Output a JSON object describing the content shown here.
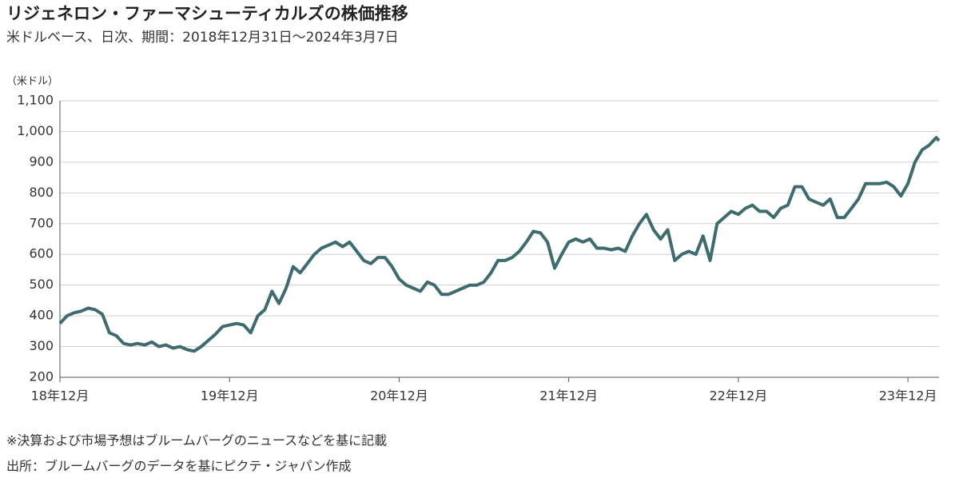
{
  "chart_data": {
    "type": "line",
    "title": "リジェネロン・ファーマシューティカルズの株価推移",
    "subtitle": "米ドルベース、日次、期間：2018年12月31日～2024年3月7日",
    "y_axis_label": "（米ドル）",
    "notes": [
      "※決算および市場予想はブルームバーグのニュースなどを基に記載",
      "出所：ブルームバーグのデータを基にピクテ・ジャパン作成"
    ],
    "xlim": [
      0,
      62.2
    ],
    "xticks": [
      {
        "value": 0,
        "label": "18年12月"
      },
      {
        "value": 12,
        "label": "19年12月"
      },
      {
        "value": 24,
        "label": "20年12月"
      },
      {
        "value": 36,
        "label": "21年12月"
      },
      {
        "value": 48,
        "label": "22年12月"
      },
      {
        "value": 60,
        "label": "23年12月"
      }
    ],
    "ylim": [
      200,
      1100
    ],
    "yticks": [
      200,
      300,
      400,
      500,
      600,
      700,
      800,
      900,
      {
        "value": 1000,
        "label": "1,000"
      },
      {
        "value": 1100,
        "label": "1,100"
      }
    ],
    "grid": true,
    "x": [
      0,
      0.5,
      1,
      1.5,
      2,
      2.5,
      3,
      3.5,
      4,
      4.5,
      5,
      5.5,
      6,
      6.5,
      7,
      7.5,
      8,
      8.5,
      9,
      9.5,
      10,
      10.5,
      11,
      11.5,
      12,
      12.5,
      13,
      13.5,
      14,
      14.5,
      15,
      15.5,
      16,
      16.5,
      17,
      17.5,
      18,
      18.5,
      19,
      19.5,
      20,
      20.5,
      21,
      21.5,
      22,
      22.5,
      23,
      23.5,
      24,
      24.5,
      25,
      25.5,
      26,
      26.5,
      27,
      27.5,
      28,
      28.5,
      29,
      29.5,
      30,
      30.5,
      31,
      31.5,
      32,
      32.5,
      33,
      33.5,
      34,
      34.5,
      35,
      35.5,
      36,
      36.5,
      37,
      37.5,
      38,
      38.5,
      39,
      39.5,
      40,
      40.5,
      41,
      41.5,
      42,
      42.5,
      43,
      43.5,
      44,
      44.5,
      45,
      45.5,
      46,
      46.5,
      47,
      47.5,
      48,
      48.5,
      49,
      49.5,
      50,
      50.5,
      51,
      51.5,
      52,
      52.5,
      53,
      53.5,
      54,
      54.5,
      55,
      55.5,
      56,
      56.5,
      57,
      57.5,
      58,
      58.5,
      59,
      59.5,
      60,
      60.5,
      61,
      61.5,
      62,
      62.2
    ],
    "series": [
      {
        "name": "株価",
        "color": "#3e6b6d",
        "values": [
          375,
          400,
          410,
          415,
          425,
          420,
          405,
          345,
          335,
          310,
          305,
          310,
          305,
          315,
          300,
          305,
          295,
          300,
          290,
          285,
          300,
          320,
          340,
          365,
          370,
          375,
          370,
          345,
          400,
          420,
          480,
          440,
          490,
          560,
          540,
          570,
          600,
          620,
          630,
          640,
          625,
          640,
          610,
          580,
          570,
          590,
          590,
          560,
          520,
          500,
          490,
          480,
          510,
          500,
          470,
          470,
          480,
          490,
          500,
          500,
          510,
          540,
          580,
          580,
          590,
          610,
          640,
          675,
          670,
          640,
          555,
          600,
          640,
          650,
          640,
          650,
          620,
          620,
          615,
          620,
          610,
          660,
          700,
          730,
          680,
          650,
          680,
          580,
          600,
          610,
          600,
          660,
          580,
          700,
          720,
          740,
          730,
          750,
          760,
          740,
          740,
          720,
          750,
          760,
          820,
          820,
          780,
          770,
          760,
          780,
          720,
          720,
          750,
          780,
          830,
          830,
          830,
          835,
          820,
          790,
          830,
          900,
          940,
          955,
          980,
          970
        ]
      }
    ]
  }
}
